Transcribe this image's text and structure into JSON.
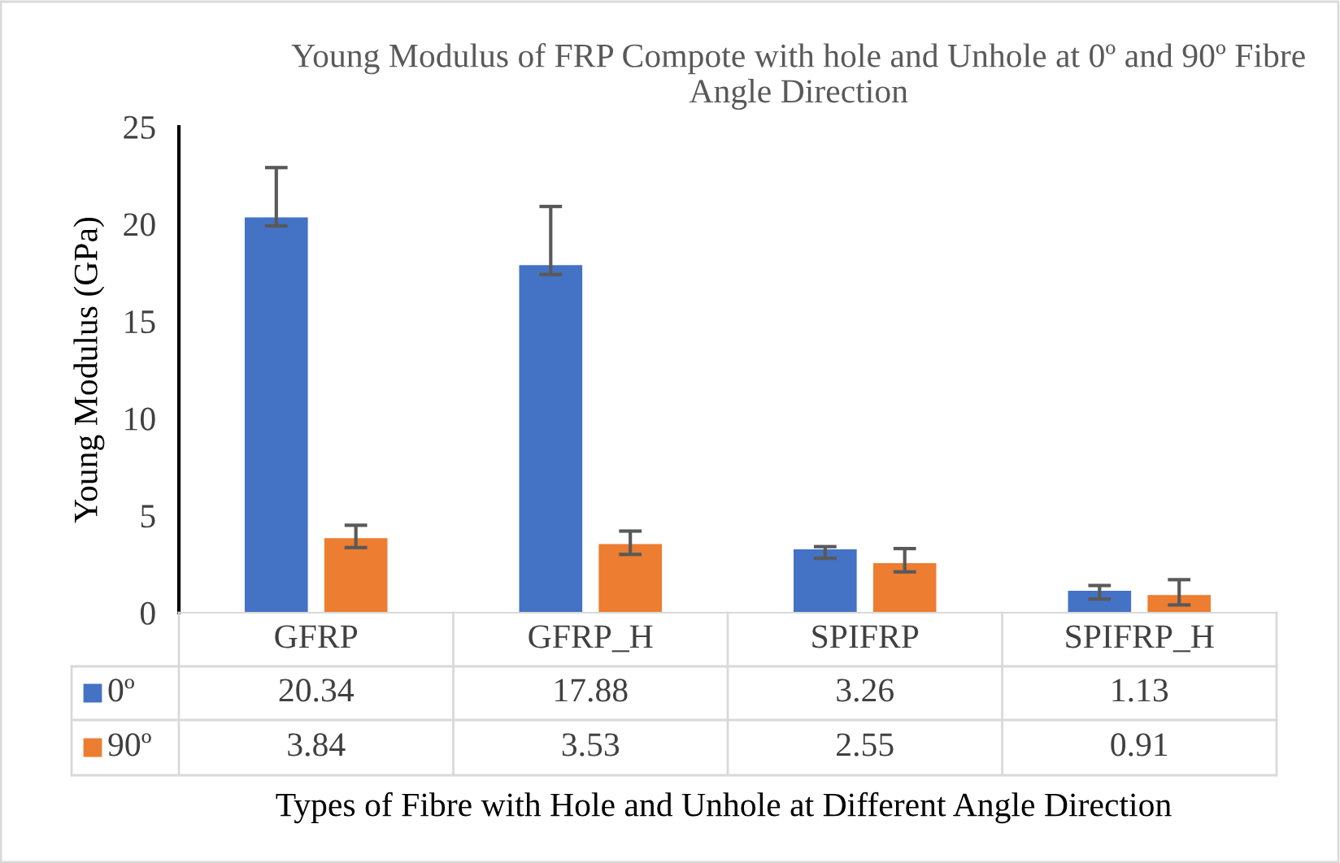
{
  "chart_data": {
    "type": "bar",
    "title": "Young Modulus of FRP Compote with hole and Unhole at 0º and 90º Fibre Angle Direction",
    "categories": [
      "GFRP",
      "GFRP_H",
      "SPIFRP",
      "SPIFRP_H"
    ],
    "series": [
      {
        "name": "0º",
        "color": "#4472c4",
        "values": [
          20.34,
          17.88,
          3.26,
          1.13
        ],
        "errors": [
          [
            19.9,
            22.9
          ],
          [
            17.4,
            20.9
          ],
          [
            2.8,
            3.4
          ],
          [
            0.7,
            1.4
          ]
        ]
      },
      {
        "name": "90º",
        "color": "#ed7d31",
        "values": [
          3.84,
          3.53,
          2.55,
          0.91
        ],
        "errors": [
          [
            3.35,
            4.5
          ],
          [
            3.0,
            4.2
          ],
          [
            2.1,
            3.3
          ],
          [
            0.4,
            1.7
          ]
        ]
      }
    ],
    "ylim": [
      0,
      25
    ],
    "yticks": [
      0,
      5,
      10,
      15,
      20,
      25
    ],
    "ylabel": "Young Modulus (GPa)",
    "xlabel": "Types of Fibre with Hole and Unhole at Different Angle Direction",
    "data_labels": true,
    "legend": "bottom",
    "grid": false
  }
}
